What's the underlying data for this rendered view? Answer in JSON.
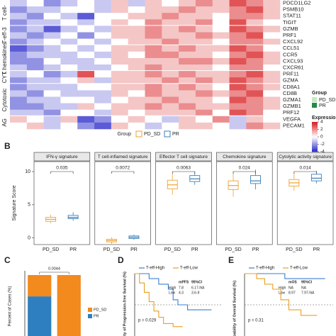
{
  "panel_labels": [
    "B",
    "C",
    "D",
    "E"
  ],
  "chart_data": [
    {
      "type": "heatmap",
      "row_groups": [
        {
          "name": "T cell-",
          "rows": [
            "PDCD1LG2",
            "PSMB10",
            "STAT11",
            "TIGIT"
          ]
        },
        {
          "name": "T-eff-3",
          "rows": [
            "GZMB",
            "PRF1",
            "CXCL92"
          ]
        },
        {
          "name": "Chemokines",
          "rows": [
            "CCL51",
            "CCR5",
            "CXCL93",
            "CXCR61"
          ]
        },
        {
          "name": "CYT",
          "rows": [
            "PRF11",
            "GZMA"
          ]
        },
        {
          "name": "Cytotoxic",
          "rows": [
            "CD8A1",
            "CD8B",
            "GZMA1",
            "GZMB1",
            "PRF12"
          ]
        },
        {
          "name": "AG",
          "rows": [
            "VEGFA",
            "PECAM1"
          ]
        }
      ],
      "values": [
        [
          -1,
          0,
          -2,
          -1,
          0,
          -1,
          1,
          -1,
          1,
          0,
          1,
          2,
          1,
          3,
          2,
          1
        ],
        [
          -2,
          -1,
          -1,
          0,
          0,
          -1,
          1,
          0,
          1,
          1,
          2,
          1,
          1,
          2,
          3,
          1
        ],
        [
          -1,
          -2,
          0,
          -1,
          -3,
          0,
          0,
          1,
          1,
          2,
          1,
          1,
          0,
          2,
          2,
          1
        ],
        [
          -2,
          -1,
          -1,
          0,
          -1,
          0,
          1,
          0,
          2,
          1,
          1,
          2,
          0,
          3,
          1,
          0
        ],
        [
          -2,
          -1,
          -3,
          -1,
          0,
          -1,
          1,
          1,
          2,
          1,
          2,
          1,
          0,
          3,
          2,
          1
        ],
        [
          -1,
          -2,
          -1,
          0,
          -2,
          0,
          1,
          1,
          2,
          1,
          1,
          2,
          1,
          2,
          3,
          0
        ],
        [
          -2,
          -1,
          0,
          -1,
          0,
          -1,
          0,
          1,
          1,
          2,
          1,
          1,
          0,
          2,
          2,
          1
        ],
        [
          -3,
          -2,
          -1,
          0,
          -1,
          0,
          1,
          1,
          2,
          1,
          2,
          1,
          1,
          3,
          2,
          0
        ],
        [
          -2,
          -1,
          -1,
          -1,
          0,
          -1,
          1,
          0,
          2,
          2,
          1,
          1,
          0,
          2,
          3,
          1
        ],
        [
          -2,
          -2,
          0,
          -1,
          -1,
          0,
          1,
          1,
          1,
          1,
          2,
          2,
          1,
          3,
          2,
          1
        ],
        [
          -1,
          -2,
          -1,
          0,
          -1,
          -1,
          0,
          1,
          2,
          1,
          1,
          1,
          0,
          2,
          2,
          0
        ],
        [
          -1,
          0,
          -2,
          -1,
          3,
          0,
          1,
          1,
          2,
          1,
          2,
          1,
          1,
          2,
          3,
          1
        ],
        [
          -2,
          -1,
          -1,
          0,
          1,
          -1,
          1,
          1,
          1,
          2,
          1,
          2,
          1,
          3,
          2,
          1
        ],
        [
          -2,
          -1,
          -1,
          -1,
          0,
          0,
          1,
          1,
          2,
          1,
          2,
          1,
          0,
          3,
          2,
          1
        ],
        [
          -1,
          -2,
          0,
          -1,
          -1,
          -1,
          1,
          0,
          2,
          1,
          1,
          2,
          1,
          2,
          3,
          0
        ],
        [
          -2,
          -1,
          -1,
          0,
          0,
          -1,
          0,
          1,
          1,
          2,
          1,
          1,
          0,
          3,
          2,
          1
        ],
        [
          -2,
          -2,
          -1,
          -1,
          1,
          0,
          1,
          1,
          2,
          1,
          2,
          1,
          1,
          2,
          2,
          1
        ],
        [
          -1,
          -1,
          -2,
          0,
          0,
          -1,
          1,
          0,
          1,
          1,
          1,
          2,
          0,
          3,
          2,
          0
        ],
        [
          1,
          0,
          -1,
          1,
          -3,
          -2,
          0,
          1,
          0,
          -1,
          1,
          0,
          2,
          -1,
          1,
          0
        ],
        [
          0,
          1,
          -1,
          0,
          -2,
          -3,
          1,
          0,
          -1,
          0,
          1,
          1,
          0,
          -1,
          2,
          1
        ]
      ],
      "group_legend": {
        "title": "Group",
        "items": [
          {
            "name": "PD_SD",
            "color": "#c7e9c0"
          },
          {
            "name": "PR",
            "color": "#238b45"
          }
        ]
      },
      "colorbar": {
        "title": "Expression",
        "lim": [
          -4,
          4
        ],
        "ticks": [
          4,
          2,
          0,
          -2,
          -4
        ],
        "colors": [
          "#2424c8",
          "#ffffff",
          "#d7191c"
        ]
      }
    },
    {
      "type": "box",
      "legend_title": "Group",
      "categories": [
        "PD_SD",
        "PR"
      ],
      "series": [
        {
          "name": "PD_SD",
          "color": "#f0a030"
        },
        {
          "name": "PR",
          "color": "#3a7fb8"
        }
      ],
      "ylabel": "Signature Score",
      "ylim": [
        -1,
        11.5
      ],
      "yticks": [
        0,
        5,
        10
      ],
      "facets": [
        {
          "title": "IFN-γ signature",
          "p": 0.035,
          "boxes": [
            [
              2.2,
              2.5,
              2.8,
              3.1,
              3.5
            ],
            [
              2.6,
              2.9,
              3.1,
              3.4,
              3.9
            ]
          ]
        },
        {
          "title": "T cell-inflamed signature",
          "p": 0.0072,
          "boxes": [
            [
              -0.9,
              -0.6,
              -0.4,
              -0.2,
              0.1
            ],
            [
              -0.3,
              -0.1,
              0.1,
              0.3,
              0.5
            ]
          ]
        },
        {
          "title": "Effector T cell signature",
          "p": 0.0063,
          "boxes": [
            [
              6.5,
              7.4,
              8,
              8.7,
              9.8
            ],
            [
              8,
              8.5,
              8.9,
              9.4,
              10
            ]
          ]
        },
        {
          "title": "Chemokine signature",
          "p": 0.024,
          "boxes": [
            [
              6.2,
              7.3,
              7.9,
              8.6,
              9.9
            ],
            [
              7.3,
              8.2,
              8.6,
              9.4,
              10.3
            ]
          ]
        },
        {
          "title": "Cytolytic activity signature",
          "p": 0.014,
          "boxes": [
            [
              7.1,
              7.8,
              8.3,
              8.8,
              9.9
            ],
            [
              8.2,
              8.6,
              9,
              9.6,
              10.1
            ]
          ]
        }
      ]
    },
    {
      "type": "bar",
      "stacked": true,
      "categories": [
        null,
        null
      ],
      "ylabel": "Percent of Cases (%)",
      "ylim": [
        0,
        100
      ],
      "p": 0.0044,
      "series": [
        {
          "name": "PR",
          "color": "#2e7fbf",
          "values": [
            65,
            0
          ]
        },
        {
          "name": "PD_SD",
          "color": "#f28a1e",
          "values": [
            35,
            100
          ]
        }
      ]
    },
    {
      "type": "line",
      "step": true,
      "ylabel": "Probability of Progression-free Survival (%)",
      "xlim": [
        0,
        18
      ],
      "ylim": [
        0,
        100
      ],
      "series": [
        {
          "name": "T-eff-High",
          "color": "#3a7fd0",
          "x": [
            0,
            3,
            5,
            7,
            8,
            9,
            11,
            13,
            16
          ],
          "y": [
            100,
            92,
            83,
            75,
            58,
            50,
            42,
            42,
            42
          ]
        },
        {
          "name": "T-eff-Low",
          "color": "#e8a020",
          "x": [
            0,
            1,
            2,
            3,
            4,
            5,
            6,
            8,
            10
          ],
          "y": [
            100,
            85,
            70,
            55,
            40,
            30,
            20,
            15,
            15
          ]
        }
      ],
      "table": {
        "header": [
          "mPFS",
          "95%CI"
        ],
        "rows": [
          [
            "High",
            "7.8",
            "6.17-NA"
          ],
          [
            "Low",
            "4.3",
            "3.6-9"
          ]
        ]
      },
      "annotation": "p = 0.029"
    },
    {
      "type": "line",
      "step": true,
      "ylabel": "Probability of Overall Survival (%)",
      "xlim": [
        0,
        22
      ],
      "ylim": [
        0,
        100
      ],
      "series": [
        {
          "name": "T-eff-High",
          "color": "#3a7fd0",
          "x": [
            0,
            5,
            10,
            15,
            20
          ],
          "y": [
            100,
            100,
            92,
            92,
            92
          ]
        },
        {
          "name": "T-eff-Low",
          "color": "#e8a020",
          "x": [
            0,
            3,
            5,
            7,
            9,
            11,
            14,
            18
          ],
          "y": [
            100,
            92,
            83,
            75,
            58,
            42,
            33,
            33
          ]
        }
      ],
      "table": {
        "header": [
          "mOS",
          "95%CI"
        ],
        "rows": [
          [
            "High",
            "NA",
            "NA"
          ],
          [
            "Low",
            "8.97",
            "7.97-NA"
          ]
        ]
      },
      "annotation": "p = 0.31"
    }
  ]
}
